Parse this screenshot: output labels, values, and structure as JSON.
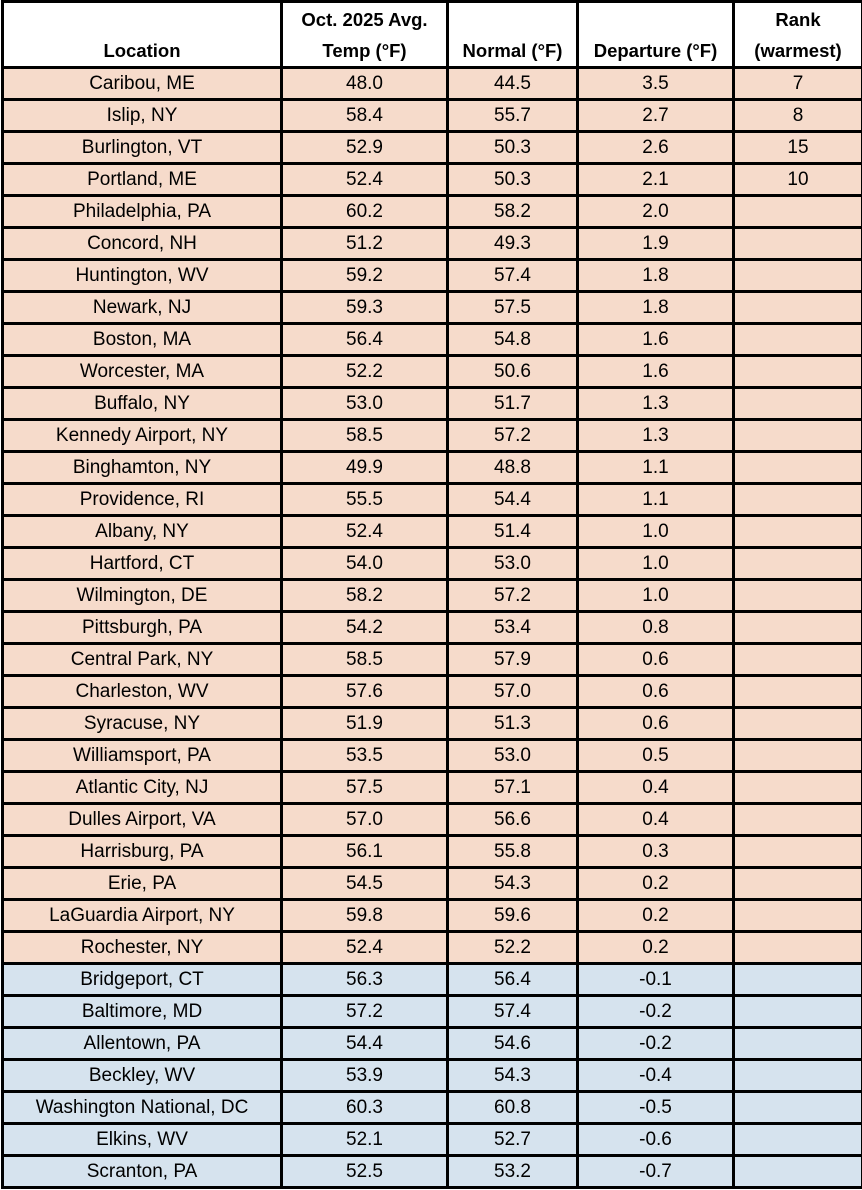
{
  "table": {
    "headers": {
      "location": "Location",
      "avg_line1": "Oct. 2025 Avg.",
      "avg_line2": "Temp (°F)",
      "normal": "Normal (°F)",
      "departure": "Departure (°F)",
      "rank_line1": "Rank",
      "rank_line2": "(warmest)"
    },
    "colors": {
      "above_normal_row": "#f6dbcb",
      "below_normal_row": "#d6e3ee",
      "border": "#000000"
    },
    "rows": [
      {
        "location": "Caribou, ME",
        "avg": "48.0",
        "normal": "44.5",
        "departure": "3.5",
        "rank": "7",
        "class": "warm"
      },
      {
        "location": "Islip, NY",
        "avg": "58.4",
        "normal": "55.7",
        "departure": "2.7",
        "rank": "8",
        "class": "warm"
      },
      {
        "location": "Burlington, VT",
        "avg": "52.9",
        "normal": "50.3",
        "departure": "2.6",
        "rank": "15",
        "class": "warm"
      },
      {
        "location": "Portland, ME",
        "avg": "52.4",
        "normal": "50.3",
        "departure": "2.1",
        "rank": "10",
        "class": "warm"
      },
      {
        "location": "Philadelphia, PA",
        "avg": "60.2",
        "normal": "58.2",
        "departure": "2.0",
        "rank": "",
        "class": "warm"
      },
      {
        "location": "Concord, NH",
        "avg": "51.2",
        "normal": "49.3",
        "departure": "1.9",
        "rank": "",
        "class": "warm"
      },
      {
        "location": "Huntington, WV",
        "avg": "59.2",
        "normal": "57.4",
        "departure": "1.8",
        "rank": "",
        "class": "warm"
      },
      {
        "location": "Newark, NJ",
        "avg": "59.3",
        "normal": "57.5",
        "departure": "1.8",
        "rank": "",
        "class": "warm"
      },
      {
        "location": "Boston, MA",
        "avg": "56.4",
        "normal": "54.8",
        "departure": "1.6",
        "rank": "",
        "class": "warm"
      },
      {
        "location": "Worcester, MA",
        "avg": "52.2",
        "normal": "50.6",
        "departure": "1.6",
        "rank": "",
        "class": "warm"
      },
      {
        "location": "Buffalo, NY",
        "avg": "53.0",
        "normal": "51.7",
        "departure": "1.3",
        "rank": "",
        "class": "warm"
      },
      {
        "location": "Kennedy Airport, NY",
        "avg": "58.5",
        "normal": "57.2",
        "departure": "1.3",
        "rank": "",
        "class": "warm"
      },
      {
        "location": "Binghamton, NY",
        "avg": "49.9",
        "normal": "48.8",
        "departure": "1.1",
        "rank": "",
        "class": "warm"
      },
      {
        "location": "Providence, RI",
        "avg": "55.5",
        "normal": "54.4",
        "departure": "1.1",
        "rank": "",
        "class": "warm"
      },
      {
        "location": "Albany, NY",
        "avg": "52.4",
        "normal": "51.4",
        "departure": "1.0",
        "rank": "",
        "class": "warm"
      },
      {
        "location": "Hartford, CT",
        "avg": "54.0",
        "normal": "53.0",
        "departure": "1.0",
        "rank": "",
        "class": "warm"
      },
      {
        "location": "Wilmington, DE",
        "avg": "58.2",
        "normal": "57.2",
        "departure": "1.0",
        "rank": "",
        "class": "warm"
      },
      {
        "location": "Pittsburgh, PA",
        "avg": "54.2",
        "normal": "53.4",
        "departure": "0.8",
        "rank": "",
        "class": "warm"
      },
      {
        "location": "Central Park, NY",
        "avg": "58.5",
        "normal": "57.9",
        "departure": "0.6",
        "rank": "",
        "class": "warm"
      },
      {
        "location": "Charleston, WV",
        "avg": "57.6",
        "normal": "57.0",
        "departure": "0.6",
        "rank": "",
        "class": "warm"
      },
      {
        "location": "Syracuse, NY",
        "avg": "51.9",
        "normal": "51.3",
        "departure": "0.6",
        "rank": "",
        "class": "warm"
      },
      {
        "location": "Williamsport, PA",
        "avg": "53.5",
        "normal": "53.0",
        "departure": "0.5",
        "rank": "",
        "class": "warm"
      },
      {
        "location": "Atlantic City, NJ",
        "avg": "57.5",
        "normal": "57.1",
        "departure": "0.4",
        "rank": "",
        "class": "warm"
      },
      {
        "location": "Dulles Airport, VA",
        "avg": "57.0",
        "normal": "56.6",
        "departure": "0.4",
        "rank": "",
        "class": "warm"
      },
      {
        "location": "Harrisburg, PA",
        "avg": "56.1",
        "normal": "55.8",
        "departure": "0.3",
        "rank": "",
        "class": "warm"
      },
      {
        "location": "Erie, PA",
        "avg": "54.5",
        "normal": "54.3",
        "departure": "0.2",
        "rank": "",
        "class": "warm"
      },
      {
        "location": "LaGuardia Airport, NY",
        "avg": "59.8",
        "normal": "59.6",
        "departure": "0.2",
        "rank": "",
        "class": "warm"
      },
      {
        "location": "Rochester, NY",
        "avg": "52.4",
        "normal": "52.2",
        "departure": "0.2",
        "rank": "",
        "class": "warm"
      },
      {
        "location": "Bridgeport, CT",
        "avg": "56.3",
        "normal": "56.4",
        "departure": "-0.1",
        "rank": "",
        "class": "cool"
      },
      {
        "location": "Baltimore, MD",
        "avg": "57.2",
        "normal": "57.4",
        "departure": "-0.2",
        "rank": "",
        "class": "cool"
      },
      {
        "location": "Allentown, PA",
        "avg": "54.4",
        "normal": "54.6",
        "departure": "-0.2",
        "rank": "",
        "class": "cool"
      },
      {
        "location": "Beckley, WV",
        "avg": "53.9",
        "normal": "54.3",
        "departure": "-0.4",
        "rank": "",
        "class": "cool"
      },
      {
        "location": "Washington National, DC",
        "avg": "60.3",
        "normal": "60.8",
        "departure": "-0.5",
        "rank": "",
        "class": "cool"
      },
      {
        "location": "Elkins, WV",
        "avg": "52.1",
        "normal": "52.7",
        "departure": "-0.6",
        "rank": "",
        "class": "cool"
      },
      {
        "location": "Scranton, PA",
        "avg": "52.5",
        "normal": "53.2",
        "departure": "-0.7",
        "rank": "",
        "class": "cool"
      }
    ]
  }
}
